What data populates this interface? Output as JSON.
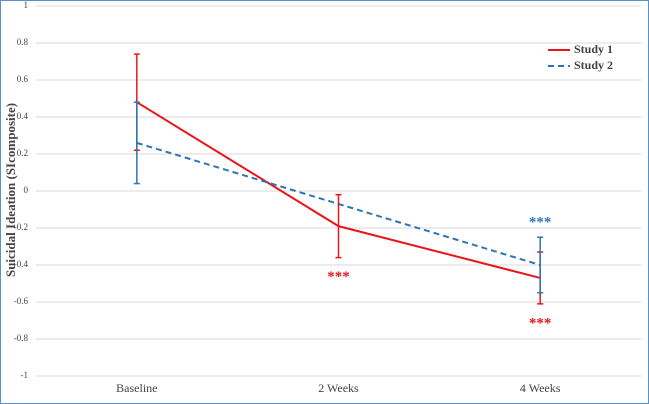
{
  "chart_data": {
    "type": "line",
    "y_label": "Suicidal Ideation (SIcomposite)",
    "categories": [
      "Baseline",
      "2 Weeks",
      "4 Weeks"
    ],
    "series": [
      {
        "name": "Study 1",
        "color": "#e8161b",
        "dash": false,
        "values": [
          0.48,
          -0.19,
          -0.47
        ],
        "errors": [
          0.26,
          0.17,
          0.14
        ],
        "significance": [
          null,
          "***",
          "***"
        ],
        "significance_side": "below"
      },
      {
        "name": "Study 2",
        "color": "#2e75b6",
        "dash": true,
        "values": [
          0.26,
          -0.07,
          -0.4
        ],
        "errors": [
          0.22,
          null,
          0.15
        ],
        "significance": [
          null,
          null,
          "***"
        ],
        "significance_side": "above"
      }
    ],
    "ylim": [
      -1,
      1
    ],
    "yticks": [
      -1,
      -0.8,
      -0.6,
      -0.4,
      -0.2,
      0,
      0.2,
      0.4,
      0.6,
      0.8,
      1
    ],
    "grid": true,
    "legend": "top-right"
  }
}
